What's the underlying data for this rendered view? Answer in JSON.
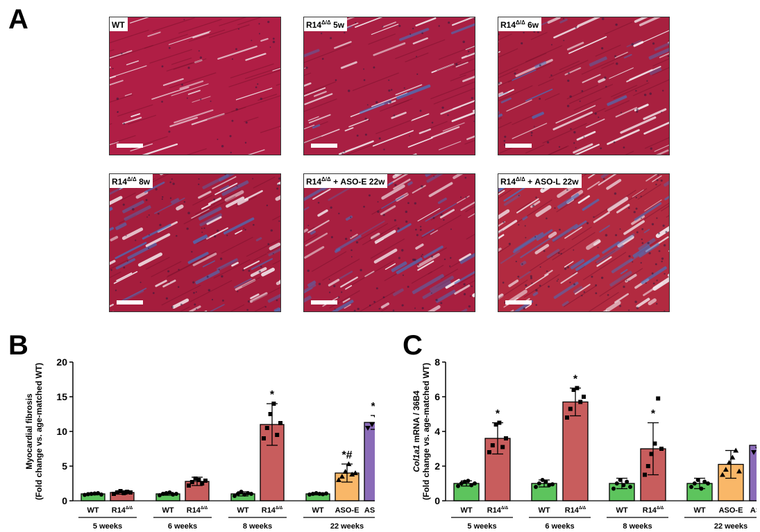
{
  "panel_labels": {
    "a": "A",
    "b": "B",
    "c": "C"
  },
  "micrographs": [
    {
      "label": "WT",
      "superscript": "",
      "suffix": "",
      "fibrosis": "none",
      "tissue_color": "#b01e45"
    },
    {
      "label": "R14",
      "superscript": "Δ/Δ",
      "suffix": " 5w",
      "fibrosis": "minimal",
      "tissue_color": "#a91f43"
    },
    {
      "label": "R14",
      "superscript": "Δ/Δ",
      "suffix": " 6w",
      "fibrosis": "mild",
      "tissue_color": "#a8203f"
    },
    {
      "label": "R14",
      "superscript": "Δ/Δ",
      "suffix": " 8w",
      "fibrosis": "moderate",
      "tissue_color": "#a51d3d"
    },
    {
      "label": "R14",
      "superscript": "Δ/Δ",
      "suffix": " + ASO-E 22w",
      "fibrosis": "moderate",
      "tissue_color": "#a81f40"
    },
    {
      "label": "R14",
      "superscript": "Δ/Δ",
      "suffix": " + ASO-L 22w",
      "fibrosis": "severe",
      "tissue_color": "#b22a40"
    }
  ],
  "colors": {
    "wt": "#5dc45d",
    "r14": "#c85d5d",
    "aso_e": "#f9b768",
    "aso_l": "#8a6bb8",
    "fibrosis_blue": "#4a6fb8",
    "background_white": "#f3eaee"
  },
  "chart_data": [
    {
      "type": "bar",
      "panel": "B",
      "ylabel_line1": "Myocardial fibrosis",
      "ylabel_line2": "(Fold change vs. age-matched WT)",
      "ylim": [
        0,
        20
      ],
      "yticks": [
        0,
        5,
        10,
        15,
        20
      ],
      "bars": [
        {
          "label": "WT",
          "label_sup": "",
          "color": "wt",
          "value": 1.0,
          "err": 0.15,
          "sig": "",
          "points": [
            0.85,
            0.95,
            1.0,
            1.05,
            1.1,
            0.9
          ]
        },
        {
          "label": "R14",
          "label_sup": "Δ/Δ",
          "color": "r14",
          "value": 1.2,
          "err": 0.25,
          "sig": "",
          "points": [
            1.0,
            1.2,
            1.4,
            1.1,
            1.3,
            1.2
          ]
        },
        {
          "label": "WT",
          "label_sup": "",
          "color": "wt",
          "value": 1.0,
          "err": 0.2,
          "sig": "",
          "points": [
            0.8,
            1.0,
            1.1,
            1.2,
            0.9,
            1.0
          ]
        },
        {
          "label": "R14",
          "label_sup": "Δ/Δ",
          "color": "r14",
          "value": 2.8,
          "err": 0.6,
          "sig": "",
          "points": [
            2.2,
            2.7,
            3.2,
            3.0,
            2.5,
            2.9
          ]
        },
        {
          "label": "WT",
          "label_sup": "",
          "color": "wt",
          "value": 1.0,
          "err": 0.3,
          "sig": "",
          "points": [
            0.7,
            1.0,
            1.3,
            0.9,
            1.1,
            1.0
          ]
        },
        {
          "label": "R14",
          "label_sup": "Δ/Δ",
          "color": "r14",
          "value": 11.0,
          "err": 3.0,
          "sig": "*",
          "points": [
            9.0,
            10.5,
            12.5,
            14.0,
            9.5,
            11.2
          ]
        },
        {
          "label": "WT",
          "label_sup": "",
          "color": "wt",
          "value": 1.0,
          "err": 0.15,
          "sig": "",
          "points": [
            0.9,
            1.0,
            1.1,
            1.0,
            0.95,
            1.05
          ]
        },
        {
          "label": "ASO-E",
          "label_sup": "",
          "color": "aso_e",
          "value": 4.0,
          "err": 1.3,
          "sig": "*#",
          "points": [
            3.0,
            3.5,
            4.2,
            5.3,
            3.8,
            4.0
          ]
        },
        {
          "label": "ASO-L",
          "label_sup": "",
          "color": "aso_l",
          "value": 11.3,
          "err": 1.0,
          "sig": "*‡",
          "points": [
            10.5,
            11.0,
            12.0,
            11.5,
            10.8
          ]
        }
      ],
      "groups": [
        {
          "label": "5 weeks",
          "bars": [
            0,
            1
          ]
        },
        {
          "label": "6 weeks",
          "bars": [
            2,
            3
          ]
        },
        {
          "label": "8 weeks",
          "bars": [
            4,
            5
          ]
        },
        {
          "label": "22 weeks",
          "bars": [
            6,
            7,
            8
          ]
        }
      ]
    },
    {
      "type": "bar",
      "panel": "C",
      "ylabel_italic": "Col1a1",
      "ylabel_line1_rest": " mRNA / 36B4",
      "ylabel_line2": "(Fold change vs. age-matched WT)",
      "ylim": [
        0,
        8
      ],
      "yticks": [
        0,
        2,
        4,
        6,
        8
      ],
      "bars": [
        {
          "label": "WT",
          "label_sup": "",
          "color": "wt",
          "value": 1.0,
          "err": 0.15,
          "sig": "",
          "points": [
            0.85,
            1.0,
            1.1,
            1.15,
            0.9,
            1.0
          ]
        },
        {
          "label": "R14",
          "label_sup": "Δ/Δ",
          "color": "r14",
          "value": 3.6,
          "err": 0.9,
          "sig": "*",
          "points": [
            2.8,
            3.2,
            4.4,
            4.5,
            3.1,
            3.6
          ]
        },
        {
          "label": "WT",
          "label_sup": "",
          "color": "wt",
          "value": 1.0,
          "err": 0.2,
          "sig": "",
          "points": [
            0.8,
            1.0,
            1.2,
            1.1,
            0.9,
            0.95
          ]
        },
        {
          "label": "R14",
          "label_sup": "Δ/Δ",
          "color": "r14",
          "value": 5.7,
          "err": 0.8,
          "sig": "*",
          "points": [
            4.8,
            5.3,
            6.4,
            6.5,
            5.7,
            6.0
          ]
        },
        {
          "label": "WT",
          "label_sup": "",
          "color": "wt",
          "value": 1.0,
          "err": 0.3,
          "sig": "",
          "points": [
            0.7,
            1.0,
            1.2,
            0.9,
            1.1,
            0.8
          ]
        },
        {
          "label": "R14",
          "label_sup": "Δ/Δ",
          "color": "r14",
          "value": 3.0,
          "err": 1.5,
          "sig": "*",
          "points": [
            1.5,
            2.0,
            2.7,
            3.3,
            5.9,
            3.0
          ]
        },
        {
          "label": "WT",
          "label_sup": "",
          "color": "wt",
          "value": 1.0,
          "err": 0.3,
          "sig": "",
          "points": [
            0.8,
            1.0,
            1.2,
            0.7,
            1.1,
            1.0
          ]
        },
        {
          "label": "ASO-E",
          "label_sup": "",
          "color": "aso_e",
          "value": 2.1,
          "err": 0.8,
          "sig": "",
          "points": [
            1.5,
            1.8,
            2.2,
            2.5,
            2.9,
            1.7
          ]
        },
        {
          "label": "ASO-L",
          "label_sup": "",
          "color": "aso_l",
          "value": 3.2,
          "err": 0.5,
          "sig": "*",
          "points": [
            2.8,
            3.0,
            3.6,
            3.7,
            3.1
          ]
        }
      ],
      "groups": [
        {
          "label": "5 weeks",
          "bars": [
            0,
            1
          ]
        },
        {
          "label": "6 weeks",
          "bars": [
            2,
            3
          ]
        },
        {
          "label": "8 weeks",
          "bars": [
            4,
            5
          ]
        },
        {
          "label": "22 weeks",
          "bars": [
            6,
            7,
            8
          ]
        }
      ]
    }
  ]
}
